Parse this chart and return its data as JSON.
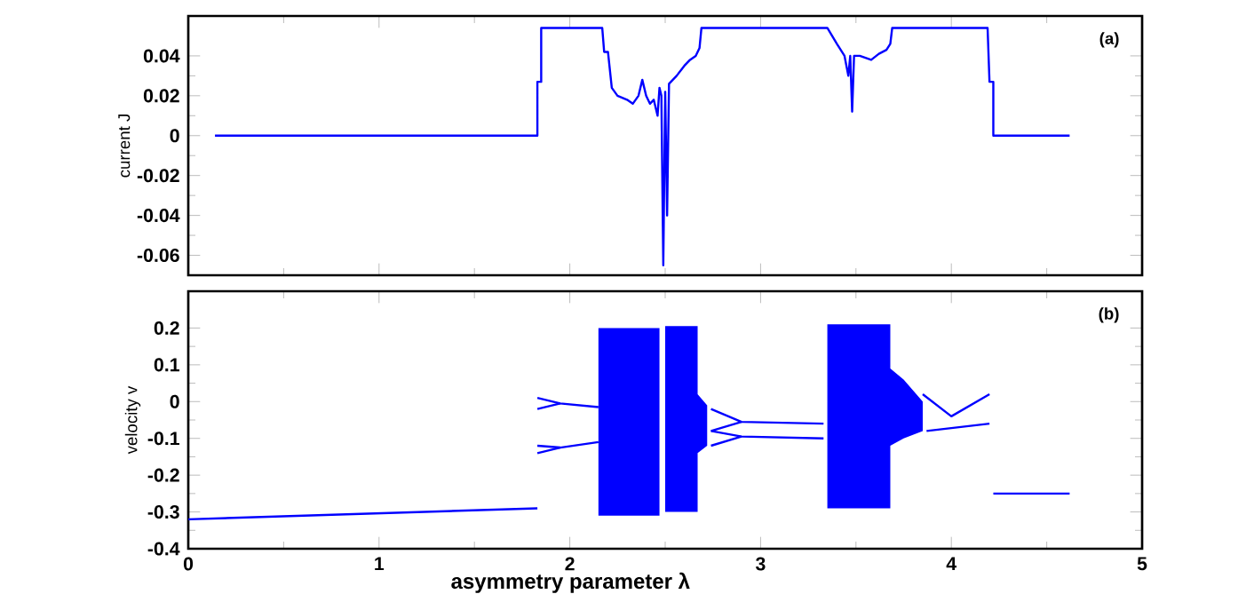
{
  "chart_data": [
    {
      "type": "line",
      "ylabel": "current J",
      "annotations": [
        "(a)"
      ],
      "xlim": [
        0,
        5
      ],
      "xticks": [
        0,
        1,
        2,
        3,
        4,
        5
      ],
      "ylim": [
        -0.07,
        0.06
      ],
      "yticks": [
        -0.06,
        -0.04,
        -0.02,
        0,
        0.02,
        0.04
      ],
      "tick_labels": "y",
      "series": [
        {
          "color": "#0000ff",
          "x": [
            0.14,
            1.83,
            1.83,
            1.85,
            1.85,
            2.17,
            2.18,
            2.2,
            2.22,
            2.25,
            2.3,
            2.33,
            2.36,
            2.38,
            2.4,
            2.42,
            2.44,
            2.46,
            2.47,
            2.48,
            2.49,
            2.5,
            2.51,
            2.52,
            2.56,
            2.6,
            2.63,
            2.66,
            2.68,
            2.69,
            3.35,
            3.4,
            3.44,
            3.46,
            3.47,
            3.48,
            3.49,
            3.52,
            3.55,
            3.58,
            3.62,
            3.66,
            3.68,
            3.69,
            4.19,
            4.2,
            4.22,
            4.22,
            4.62
          ],
          "values": [
            0,
            0,
            0.027,
            0.027,
            0.054,
            0.054,
            0.042,
            0.042,
            0.024,
            0.02,
            0.018,
            0.016,
            0.02,
            0.028,
            0.02,
            0.016,
            0.018,
            0.01,
            0.024,
            0.02,
            -0.065,
            0.022,
            -0.04,
            0.026,
            0.03,
            0.035,
            0.038,
            0.04,
            0.044,
            0.054,
            0.054,
            0.046,
            0.04,
            0.03,
            0.04,
            0.012,
            0.04,
            0.04,
            0.039,
            0.038,
            0.041,
            0.043,
            0.046,
            0.054,
            0.054,
            0.027,
            0.027,
            0,
            0
          ]
        }
      ]
    },
    {
      "type": "line",
      "xlabel": "asymmetry parameter λ",
      "ylabel": "velocity v",
      "annotations": [
        "(b)"
      ],
      "xlim": [
        0,
        5
      ],
      "xticks": [
        0,
        1,
        2,
        3,
        4,
        5
      ],
      "ylim": [
        -0.4,
        0.3
      ],
      "yticks": [
        -0.4,
        -0.3,
        -0.2,
        -0.1,
        0,
        0.1,
        0.2
      ],
      "series": [
        {
          "color": "#0000ff",
          "x": [
            0,
            1.83
          ],
          "values": [
            -0.32,
            -0.29
          ]
        },
        {
          "color": "#0000ff",
          "x": [
            1.83,
            1.95,
            2.15
          ],
          "values": [
            0.01,
            -0.005,
            -0.015
          ]
        },
        {
          "color": "#0000ff",
          "x": [
            1.83,
            1.95
          ],
          "values": [
            -0.02,
            -0.005
          ]
        },
        {
          "color": "#0000ff",
          "x": [
            1.83,
            1.95,
            2.15
          ],
          "values": [
            -0.14,
            -0.125,
            -0.11
          ]
        },
        {
          "color": "#0000ff",
          "x": [
            1.83,
            1.95
          ],
          "values": [
            -0.12,
            -0.125
          ]
        },
        {
          "type": "area",
          "color": "#0000ff",
          "x": [
            2.15,
            2.47
          ],
          "values": [
            null,
            null
          ],
          "lower": [
            -0.31,
            -0.31
          ],
          "upper": [
            0.2,
            0.2
          ]
        },
        {
          "type": "area",
          "color": "#0000ff",
          "x": [
            2.5,
            2.67,
            2.67,
            2.72
          ],
          "values": [
            null,
            null,
            null,
            null
          ],
          "lower": [
            -0.3,
            -0.3,
            -0.14,
            -0.12
          ],
          "upper": [
            0.205,
            0.205,
            0.02,
            -0.01
          ]
        },
        {
          "color": "#0000ff",
          "x": [
            2.74,
            2.9,
            3.33
          ],
          "values": [
            -0.02,
            -0.055,
            -0.06
          ]
        },
        {
          "color": "#0000ff",
          "x": [
            2.74,
            2.9
          ],
          "values": [
            -0.08,
            -0.055
          ]
        },
        {
          "color": "#0000ff",
          "x": [
            2.74,
            2.9,
            3.33
          ],
          "values": [
            -0.08,
            -0.095,
            -0.1
          ]
        },
        {
          "color": "#0000ff",
          "x": [
            2.74,
            2.9
          ],
          "values": [
            -0.12,
            -0.095
          ]
        },
        {
          "type": "area",
          "color": "#0000ff",
          "x": [
            3.35,
            3.68,
            3.68,
            3.75,
            3.85
          ],
          "values": [
            null,
            null,
            null,
            null,
            null
          ],
          "lower": [
            -0.29,
            -0.29,
            -0.12,
            -0.1,
            -0.08
          ],
          "upper": [
            0.21,
            0.21,
            0.09,
            0.06,
            0.0
          ]
        },
        {
          "color": "#0000ff",
          "x": [
            3.85,
            4.0,
            4.2
          ],
          "values": [
            0.02,
            -0.04,
            0.02
          ]
        },
        {
          "color": "#0000ff",
          "x": [
            3.87,
            4.2
          ],
          "values": [
            -0.08,
            -0.06
          ]
        },
        {
          "color": "#0000ff",
          "x": [
            4.22,
            4.62
          ],
          "values": [
            -0.25,
            -0.25
          ]
        }
      ]
    }
  ]
}
